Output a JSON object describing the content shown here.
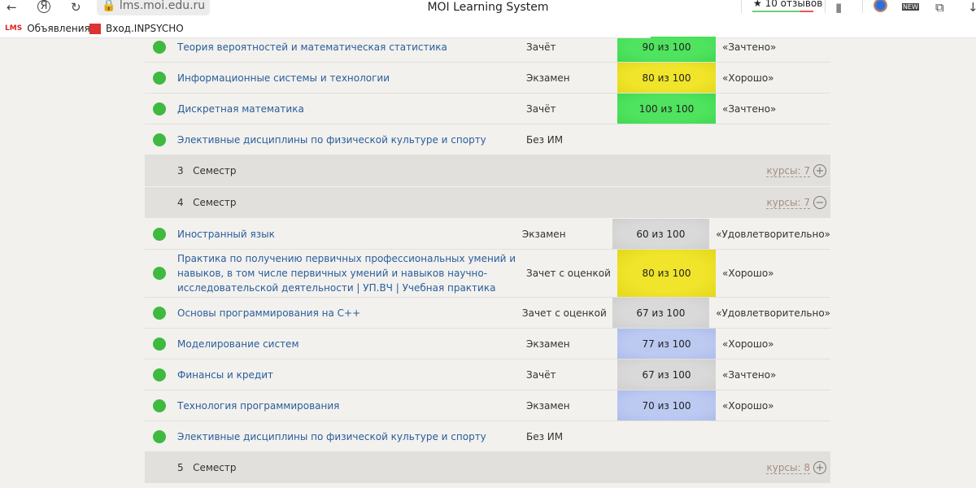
{
  "browser": {
    "url": "lms.moi.edu.ru",
    "title": "MOI Learning System",
    "reviews": "★ 10 отзывов",
    "bookmarks": [
      "Объявления",
      "Вход.INPSYCHO"
    ]
  },
  "colors": {
    "green": "#4fe35f",
    "yellow": "#f0e52a",
    "gray": "#d9d9d9",
    "blue": "#bccaf2"
  },
  "rows_top": [
    {
      "name": "Теория вероятностей и математическая статистика",
      "type": "Зачёт",
      "score": "90 из 100",
      "result": "«Зачтено»",
      "color": "green"
    },
    {
      "name": "Информационные системы и технологии",
      "type": "Экзамен",
      "score": "80 из 100",
      "result": "«Хорошо»",
      "color": "yellow"
    },
    {
      "name": "Дискретная математика",
      "type": "Зачёт",
      "score": "100 из 100",
      "result": "«Зачтено»",
      "color": "green"
    },
    {
      "name": "Элективные дисциплины по физической культуре и спорту",
      "type": "Без ИМ",
      "score": "",
      "result": "",
      "color": ""
    }
  ],
  "semesters": [
    {
      "num": "3",
      "label": "Семестр",
      "courses": "курсы: 7",
      "state": "collapsed"
    },
    {
      "num": "4",
      "label": "Семестр",
      "courses": "курсы: 7",
      "state": "expanded"
    },
    {
      "num": "5",
      "label": "Семестр",
      "courses": "курсы: 8",
      "state": "collapsed"
    }
  ],
  "rows_sem4": [
    {
      "name": "Иностранный язык",
      "type": "Экзамен",
      "score": "60 из 100",
      "result": "«Удовлетворительно»",
      "color": "gray"
    },
    {
      "name": "Практика по получению первичных профессиональных умений и навыков, в том числе первичных умений и навыков научно-исследовательской деятельности | УП.ВЧ | Учебная практика",
      "type": "Зачет с оценкой",
      "score": "80 из 100",
      "result": "«Хорошо»",
      "color": "yellow"
    },
    {
      "name": "Основы программирования на C++",
      "type": "Зачет с оценкой",
      "score": "67 из 100",
      "result": "«Удовлетворительно»",
      "color": "gray"
    },
    {
      "name": "Моделирование систем",
      "type": "Экзамен",
      "score": "77 из 100",
      "result": "«Хорошо»",
      "color": "blue"
    },
    {
      "name": "Финансы и кредит",
      "type": "Зачёт",
      "score": "67 из 100",
      "result": "«Зачтено»",
      "color": "gray"
    },
    {
      "name": "Технология программирования",
      "type": "Экзамен",
      "score": "70 из 100",
      "result": "«Хорошо»",
      "color": "blue"
    },
    {
      "name": "Элективные дисциплины по физической культуре и спорту",
      "type": "Без ИМ",
      "score": "",
      "result": "",
      "color": ""
    }
  ]
}
